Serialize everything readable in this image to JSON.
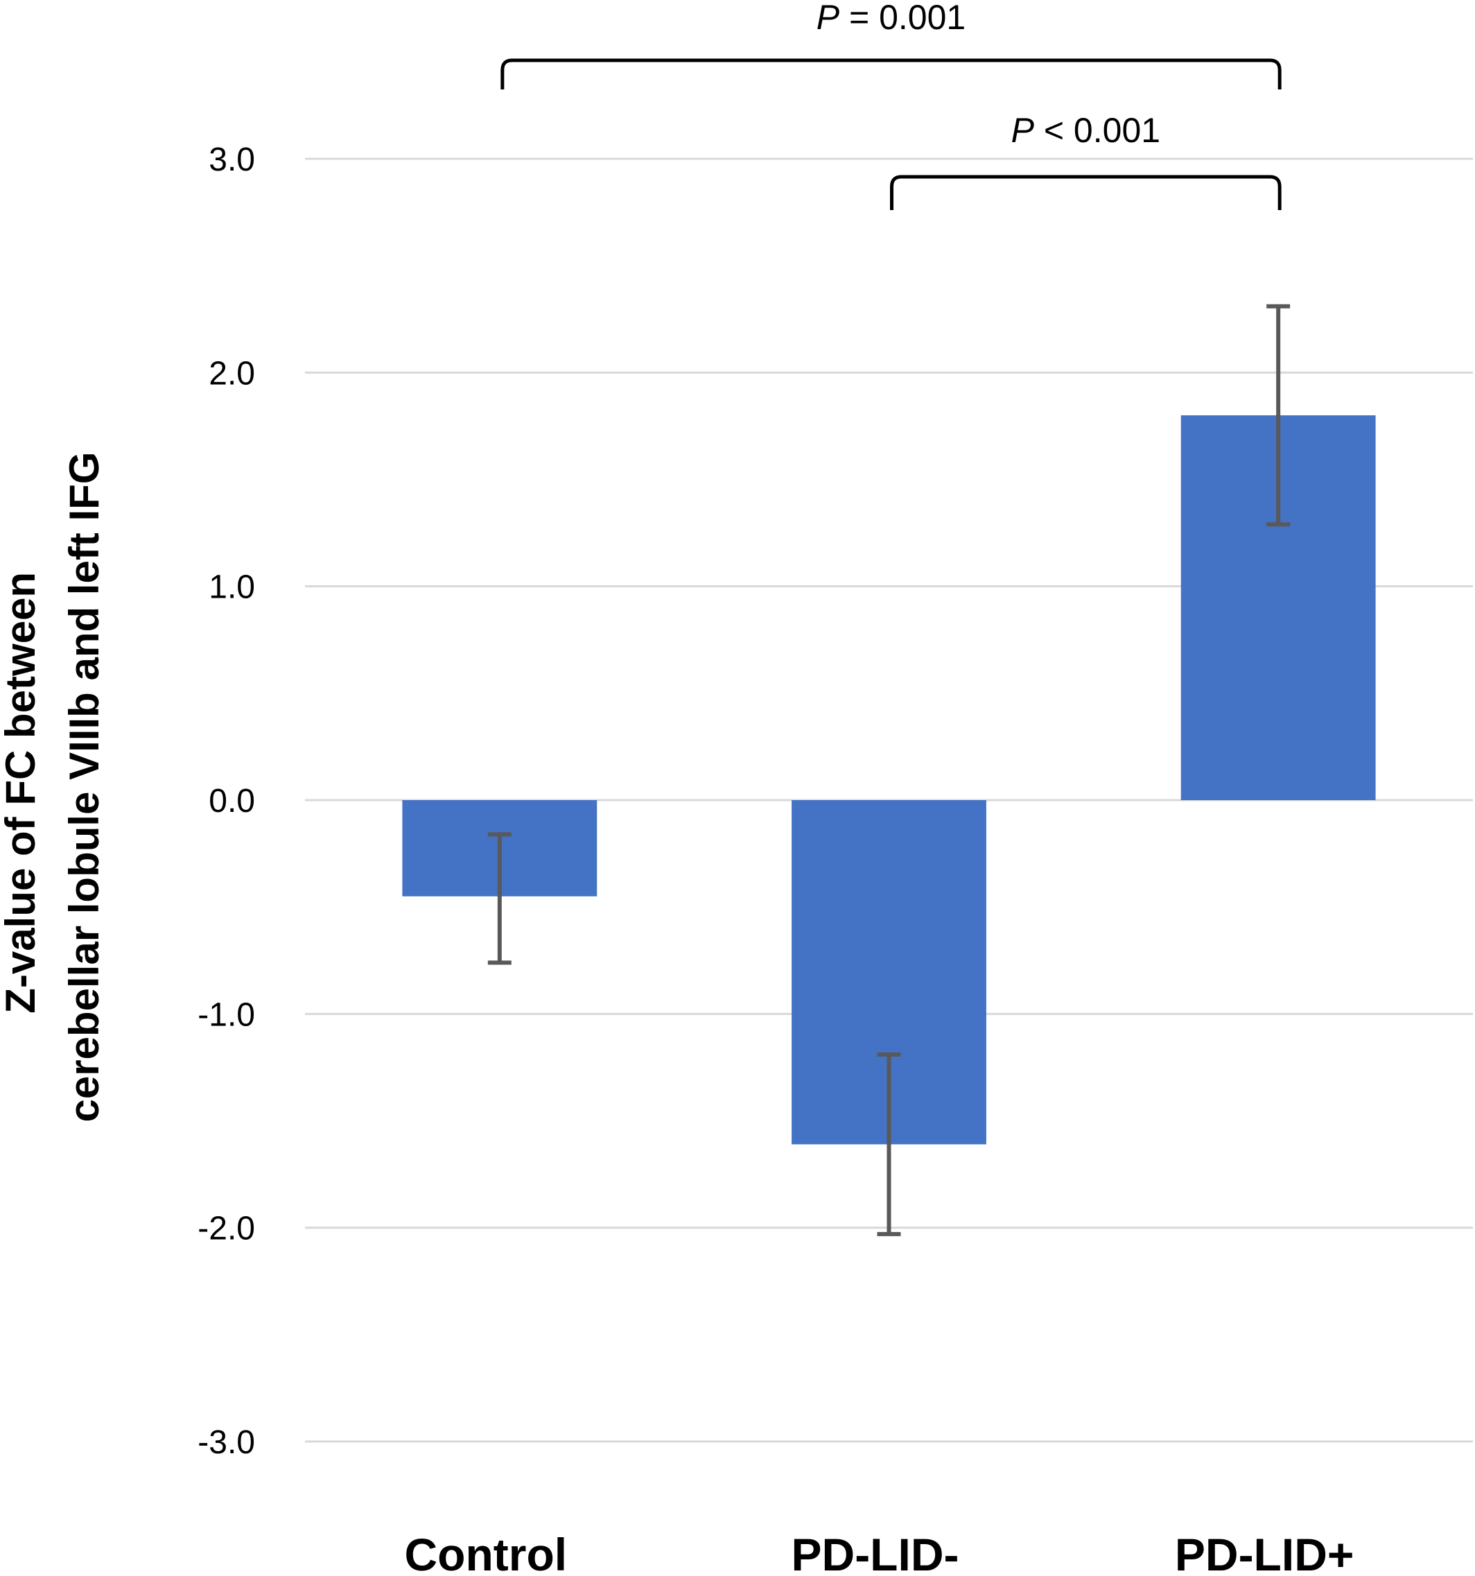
{
  "chart_data": {
    "type": "bar",
    "categories": [
      "Control",
      "PD-LID-",
      "PD-LID+"
    ],
    "values": [
      -0.45,
      -1.61,
      1.8
    ],
    "error_low": [
      -0.76,
      -2.03,
      1.29
    ],
    "error_high": [
      -0.16,
      -1.19,
      2.31
    ],
    "ylabel_line1": "Z-value of FC between",
    "ylabel_line2": "cerebellar lobule VIIIb and left IFG",
    "xlabel": "",
    "ylim": [
      -3.0,
      3.0
    ],
    "yticks": [
      3.0,
      2.0,
      1.0,
      0.0,
      -1.0,
      -2.0,
      -3.0
    ],
    "ytick_labels": [
      "3.0",
      "2.0",
      "1.0",
      "0.0",
      "-1.0",
      "-2.0",
      "-3.0"
    ],
    "grid": true,
    "legend": "none",
    "bar_color": "#4472C4",
    "error_bar_color": "#595959",
    "gridline_color": "#D9D9D9",
    "significance": [
      {
        "from": 0,
        "to": 2,
        "p": "P",
        "label": " = 0.001"
      },
      {
        "from": 1,
        "to": 2,
        "p": "P",
        "label": " < 0.001"
      }
    ]
  }
}
